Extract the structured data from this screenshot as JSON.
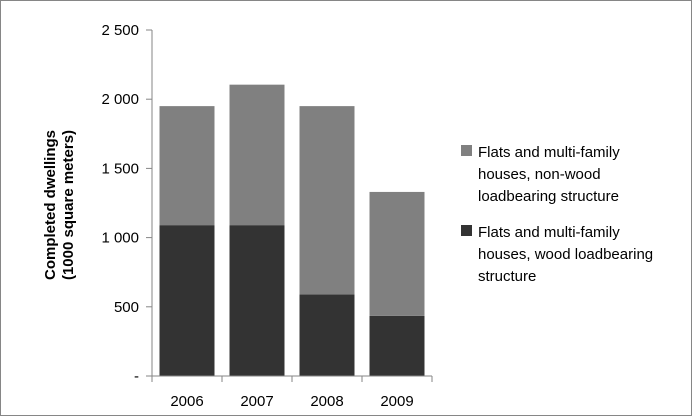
{
  "chart_data": {
    "type": "bar",
    "stacked": true,
    "title": "",
    "xlabel": "",
    "ylabel": [
      "Completed dwellings",
      "(1000 square meters)"
    ],
    "categories": [
      "2006",
      "2007",
      "2008",
      "2009"
    ],
    "ylim": [
      0,
      2500
    ],
    "yticks": [
      0,
      500,
      1000,
      1500,
      2000,
      2500
    ],
    "ytick_labels": [
      "-",
      "500",
      "1 000",
      "1 500",
      "2 000",
      "2 500"
    ],
    "grid": false,
    "legend_position": "right",
    "series": [
      {
        "name": [
          "Flats and multi-family",
          "houses, wood loadbearing",
          "structure"
        ],
        "values": [
          1090,
          1090,
          590,
          435
        ],
        "color": "#333333"
      },
      {
        "name": [
          "Flats and multi-family",
          "houses, non-wood",
          "loadbearing structure"
        ],
        "values": [
          860,
          1015,
          1360,
          895
        ],
        "color": "#808080"
      }
    ]
  }
}
